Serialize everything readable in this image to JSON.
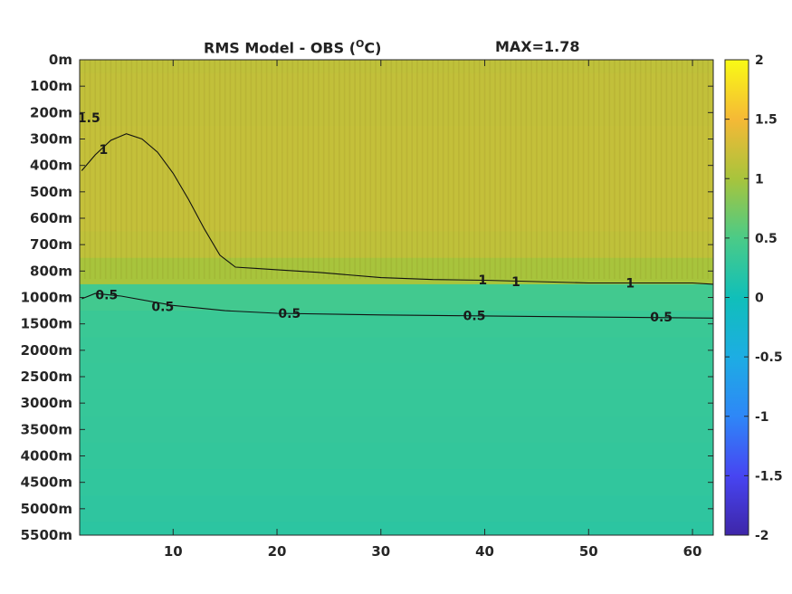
{
  "chart_data": {
    "type": "heatmap",
    "title_main": "RMS Model - OBS (",
    "title_degree": "O",
    "title_unit": "C)",
    "max_label": "MAX=1.78",
    "y_tick_labels": [
      "0m",
      "100m",
      "200m",
      "300m",
      "400m",
      "500m",
      "600m",
      "700m",
      "800m",
      "1000m",
      "1500m",
      "2000m",
      "2500m",
      "3000m",
      "3500m",
      "4000m",
      "4500m",
      "5000m",
      "5500m"
    ],
    "x_ticks": [
      10,
      20,
      30,
      40,
      50,
      60
    ],
    "xlim": [
      1,
      62
    ],
    "colorbar": {
      "range": [
        -2,
        2
      ],
      "ticks": [
        2,
        1.5,
        1,
        0.5,
        0,
        -0.5,
        -1,
        -1.5,
        -2
      ],
      "tick_labels": [
        "2",
        "1.5",
        "1",
        "0.5",
        "0",
        "-0.5",
        "-1",
        "-1.5",
        "-2"
      ],
      "colormap": [
        "#3e26a8",
        "#4745f2",
        "#2e87f7",
        "#1dade3",
        "#10bfb9",
        "#4bcb87",
        "#a8c43c",
        "#f5b936",
        "#f9fb15"
      ]
    },
    "field_by_depth_level": [
      1.15,
      1.17,
      1.17,
      1.18,
      1.18,
      1.18,
      1.18,
      1.15,
      1.0,
      0.42,
      0.36,
      0.34,
      0.33,
      0.32,
      0.31,
      0.3,
      0.28,
      0.26,
      0.24
    ],
    "contours": [
      {
        "level": 1,
        "label": "1",
        "x": [
          1.2,
          2.5,
          4.0,
          5.5,
          7.0,
          8.5,
          10.0,
          11.5,
          13.0,
          14.5,
          16.0,
          18.0,
          20.0,
          24.0,
          30.0,
          35.0,
          40.0,
          45.0,
          50.0,
          55.0,
          60.0,
          62.0
        ],
        "y": [
          4.2,
          3.6,
          3.05,
          2.8,
          3.0,
          3.5,
          4.3,
          5.3,
          6.4,
          7.4,
          7.85,
          7.9,
          7.95,
          8.05,
          8.25,
          8.32,
          8.35,
          8.4,
          8.45,
          8.45,
          8.45,
          8.5
        ]
      },
      {
        "level": 0.5,
        "label": "0.5",
        "x": [
          1.2,
          2.5,
          5.0,
          10.0,
          15.0,
          20.0,
          30.0,
          40.0,
          50.0,
          62.0
        ],
        "y": [
          9.05,
          8.85,
          8.95,
          9.3,
          9.5,
          9.6,
          9.66,
          9.7,
          9.74,
          9.78
        ]
      }
    ],
    "contour_labels": [
      {
        "text": "1.5",
        "x": 1.9,
        "y": 2.2
      },
      {
        "text": "1",
        "x": 3.3,
        "y": 3.4
      },
      {
        "text": "0.5",
        "x": 3.6,
        "y": 8.9
      },
      {
        "text": "0.5",
        "x": 9.0,
        "y": 9.35
      },
      {
        "text": "0.5",
        "x": 21.2,
        "y": 9.6
      },
      {
        "text": "0.5",
        "x": 39.0,
        "y": 9.68
      },
      {
        "text": "0.5",
        "x": 57.0,
        "y": 9.74
      },
      {
        "text": "1",
        "x": 39.8,
        "y": 8.33
      },
      {
        "text": "1",
        "x": 43.0,
        "y": 8.4
      },
      {
        "text": "1",
        "x": 54.0,
        "y": 8.45
      }
    ]
  }
}
